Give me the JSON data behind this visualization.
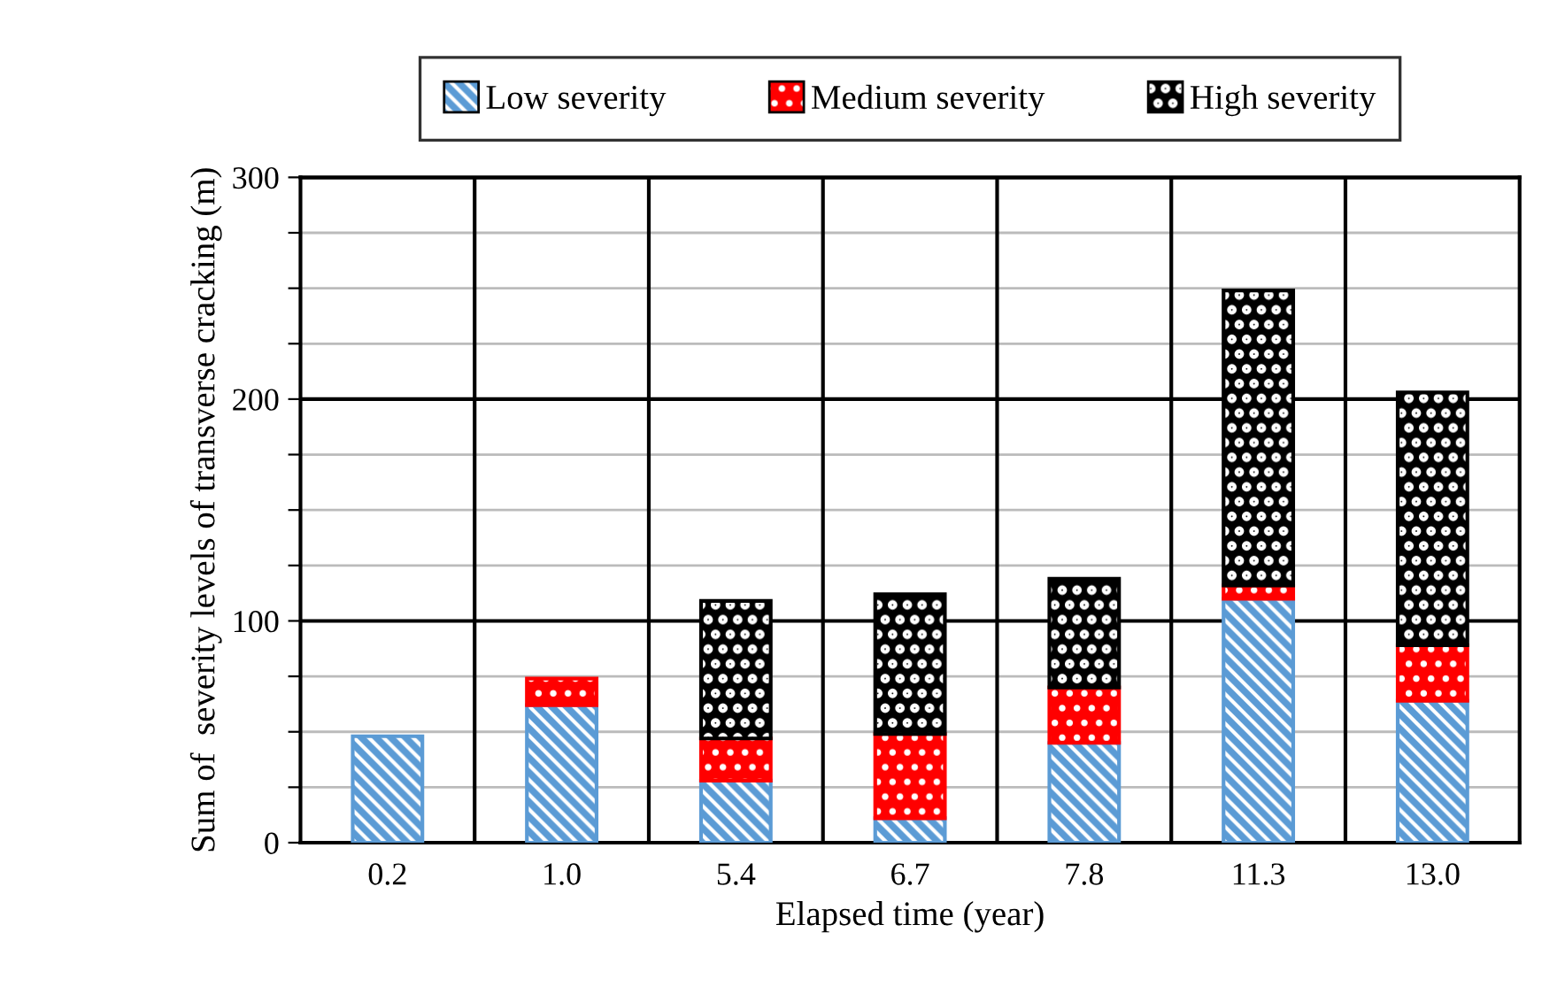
{
  "chart_data": {
    "type": "bar",
    "stacked": true,
    "xlabel": "Elapsed time (year)",
    "ylabel": "Sum of  severity levels of transverse cracking (m)",
    "categories": [
      "0.2",
      "1.0",
      "5.4",
      "6.7",
      "7.8",
      "11.3",
      "13.0"
    ],
    "series": [
      {
        "name": "Low severity",
        "color": "#5b9bd5",
        "values": [
          48,
          62,
          28,
          11,
          45,
          110,
          64
        ]
      },
      {
        "name": "Medium severity",
        "color": "#ff0000",
        "values": [
          null,
          12,
          19,
          38,
          25,
          6,
          25
        ]
      },
      {
        "name": "High severity",
        "color": "#000000",
        "values": [
          null,
          null,
          62,
          63,
          49,
          133,
          114
        ]
      }
    ],
    "ylim": [
      0,
      300
    ],
    "yticks": [
      0,
      {
        "value": 25,
        "label": null
      },
      {
        "value": 50,
        "label": null
      },
      {
        "value": 75,
        "label": null
      },
      100,
      {
        "value": 125,
        "label": null
      },
      {
        "value": 150,
        "label": null
      },
      {
        "value": 175,
        "label": null
      },
      200,
      {
        "value": 225,
        "label": null
      },
      {
        "value": 250,
        "label": null
      },
      {
        "value": 275,
        "label": null
      },
      300
    ],
    "grid": true,
    "legend": "top"
  }
}
